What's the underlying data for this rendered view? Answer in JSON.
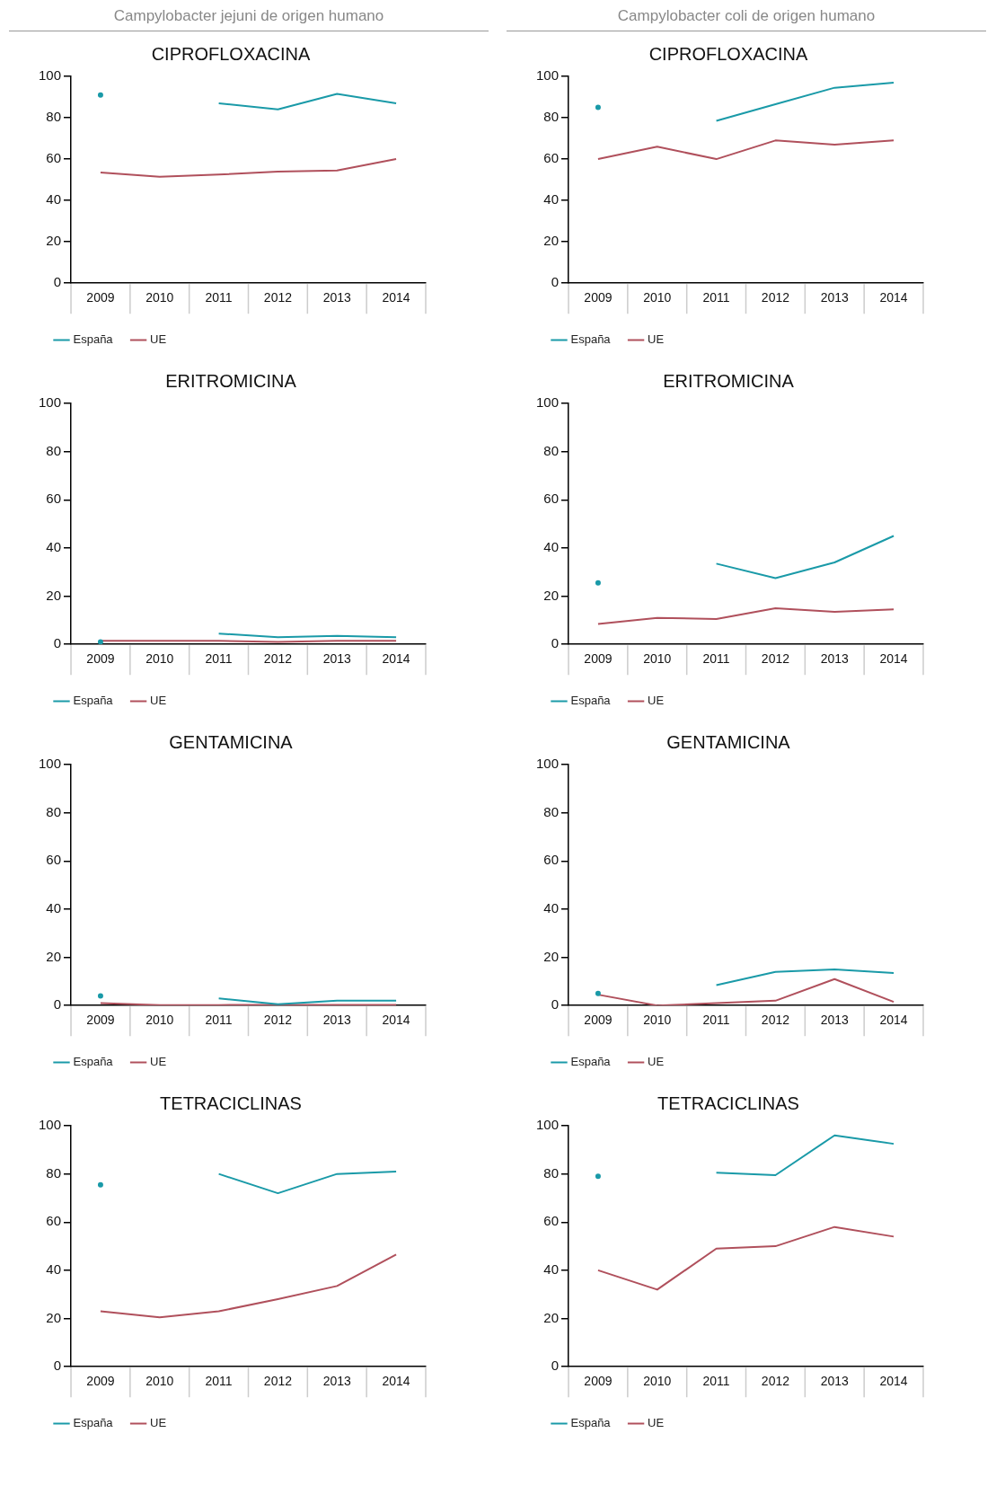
{
  "chart_data": [
    {
      "type": "line",
      "title": "CIPROFLOXACINA",
      "annotations": [
        "Campylobacter jejuni de origen humano"
      ],
      "categories": [
        "2009",
        "2010",
        "2011",
        "2012",
        "2013",
        "2014"
      ],
      "ylim": [
        0,
        100
      ],
      "yticks": [
        0,
        20,
        40,
        60,
        80,
        100
      ],
      "grid": false,
      "legend": "bottom left",
      "series": [
        {
          "name": "España",
          "color": "#1a9aa8",
          "values": [
            91,
            null,
            87,
            84,
            91.5,
            87
          ]
        },
        {
          "name": "UE",
          "color": "#b0505c",
          "values": [
            53.5,
            51.5,
            52.5,
            54,
            54.5,
            60
          ]
        }
      ]
    },
    {
      "type": "line",
      "title": "CIPROFLOXACINA",
      "annotations": [
        "Campylobacter coli de origen humano"
      ],
      "categories": [
        "2009",
        "2010",
        "2011",
        "2012",
        "2013",
        "2014"
      ],
      "ylim": [
        0,
        100
      ],
      "yticks": [
        0,
        20,
        40,
        60,
        80,
        100
      ],
      "grid": false,
      "legend": "bottom left",
      "series": [
        {
          "name": "España",
          "color": "#1a9aa8",
          "values": [
            85,
            null,
            78.5,
            86.5,
            94.5,
            97
          ]
        },
        {
          "name": "UE",
          "color": "#b0505c",
          "values": [
            60,
            66,
            60,
            69,
            67,
            69
          ]
        }
      ]
    },
    {
      "type": "line",
      "title": "ERITROMICINA",
      "categories": [
        "2009",
        "2010",
        "2011",
        "2012",
        "2013",
        "2014"
      ],
      "ylim": [
        0,
        100
      ],
      "yticks": [
        0,
        20,
        40,
        60,
        80,
        100
      ],
      "grid": false,
      "legend": "bottom left",
      "series": [
        {
          "name": "España",
          "color": "#1a9aa8",
          "values": [
            1,
            null,
            4.5,
            3,
            3.5,
            3
          ]
        },
        {
          "name": "UE",
          "color": "#b0505c",
          "values": [
            1.5,
            1.5,
            1.5,
            1,
            1.5,
            1.5
          ]
        }
      ]
    },
    {
      "type": "line",
      "title": "ERITROMICINA",
      "categories": [
        "2009",
        "2010",
        "2011",
        "2012",
        "2013",
        "2014"
      ],
      "ylim": [
        0,
        100
      ],
      "yticks": [
        0,
        20,
        40,
        60,
        80,
        100
      ],
      "grid": false,
      "legend": "bottom left",
      "series": [
        {
          "name": "España",
          "color": "#1a9aa8",
          "values": [
            25.5,
            null,
            33.5,
            27.5,
            34,
            45
          ]
        },
        {
          "name": "UE",
          "color": "#b0505c",
          "values": [
            8.5,
            11,
            10.5,
            15,
            13.5,
            14.5
          ]
        }
      ]
    },
    {
      "type": "line",
      "title": "GENTAMICINA",
      "categories": [
        "2009",
        "2010",
        "2011",
        "2012",
        "2013",
        "2014"
      ],
      "ylim": [
        0,
        100
      ],
      "yticks": [
        0,
        20,
        40,
        60,
        80,
        100
      ],
      "grid": false,
      "legend": "bottom left",
      "series": [
        {
          "name": "España",
          "color": "#1a9aa8",
          "values": [
            4,
            null,
            3,
            0.5,
            2,
            2
          ]
        },
        {
          "name": "UE",
          "color": "#b0505c",
          "values": [
            1,
            0.2,
            0.2,
            0.3,
            0.3,
            0.3
          ]
        }
      ]
    },
    {
      "type": "line",
      "title": "GENTAMICINA",
      "categories": [
        "2009",
        "2010",
        "2011",
        "2012",
        "2013",
        "2014"
      ],
      "ylim": [
        0,
        100
      ],
      "yticks": [
        0,
        20,
        40,
        60,
        80,
        100
      ],
      "grid": false,
      "legend": "bottom left",
      "series": [
        {
          "name": "España",
          "color": "#1a9aa8",
          "values": [
            5,
            null,
            8.5,
            14,
            15,
            13.5
          ]
        },
        {
          "name": "UE",
          "color": "#b0505c",
          "values": [
            4.5,
            0,
            1,
            2,
            11,
            1.5
          ]
        }
      ]
    },
    {
      "type": "line",
      "title": "TETRACICLINAS",
      "categories": [
        "2009",
        "2010",
        "2011",
        "2012",
        "2013",
        "2014"
      ],
      "ylim": [
        0,
        100
      ],
      "yticks": [
        0,
        20,
        40,
        60,
        80,
        100
      ],
      "grid": false,
      "legend": "bottom left",
      "series": [
        {
          "name": "España",
          "color": "#1a9aa8",
          "values": [
            75.5,
            null,
            80,
            72,
            80,
            81
          ]
        },
        {
          "name": "UE",
          "color": "#b0505c",
          "values": [
            23,
            20.5,
            23,
            28,
            33.5,
            46.5
          ]
        }
      ]
    },
    {
      "type": "line",
      "title": "TETRACICLINAS",
      "categories": [
        "2009",
        "2010",
        "2011",
        "2012",
        "2013",
        "2014"
      ],
      "ylim": [
        0,
        100
      ],
      "yticks": [
        0,
        20,
        40,
        60,
        80,
        100
      ],
      "grid": false,
      "legend": "bottom left",
      "series": [
        {
          "name": "España",
          "color": "#1a9aa8",
          "values": [
            79,
            null,
            80.5,
            79.5,
            96,
            92.5
          ]
        },
        {
          "name": "UE",
          "color": "#b0505c",
          "values": [
            40,
            32,
            49,
            50,
            58,
            54
          ]
        }
      ]
    }
  ]
}
